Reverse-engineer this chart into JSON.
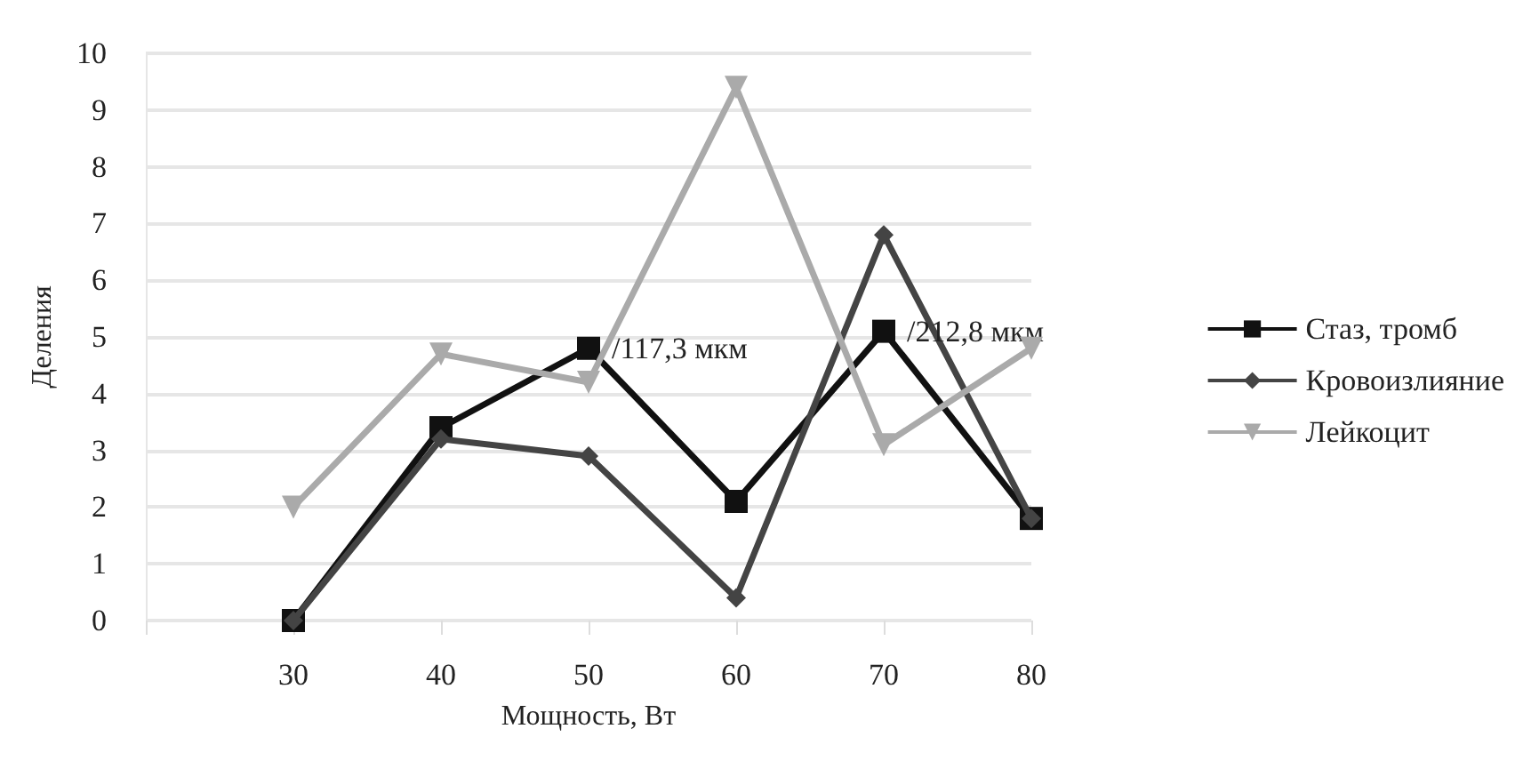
{
  "chart_data": {
    "type": "line",
    "xlabel": "Мощность, Вт",
    "ylabel": "Деления",
    "categories": [
      null,
      "30",
      "40",
      "50",
      "60",
      "70",
      "80"
    ],
    "series": [
      {
        "name": "Стаз, тромб",
        "color": "#111111",
        "marker": "square",
        "values": [
          null,
          0,
          3.4,
          4.8,
          2.1,
          5.1,
          1.8
        ]
      },
      {
        "name": "Кровоизлияние",
        "color": "#444444",
        "marker": "diamond",
        "values": [
          null,
          0,
          3.2,
          2.9,
          0.4,
          6.8,
          1.8
        ]
      },
      {
        "name": "Лейкоцит",
        "color": "#aaaaaa",
        "marker": "triangle_down",
        "values": [
          null,
          2.0,
          4.7,
          4.2,
          9.4,
          3.1,
          4.8
        ]
      }
    ],
    "ylim": [
      0,
      10
    ],
    "yticks": [
      0,
      1,
      2,
      3,
      4,
      5,
      6,
      7,
      8,
      9,
      10
    ],
    "grid": "y",
    "legend": "right",
    "annotations": [
      {
        "text": "/117,3 мкм",
        "x": "50",
        "y": 4.8
      },
      {
        "text": "/212,8 мкм",
        "x": "70",
        "y": 5.1
      }
    ]
  }
}
